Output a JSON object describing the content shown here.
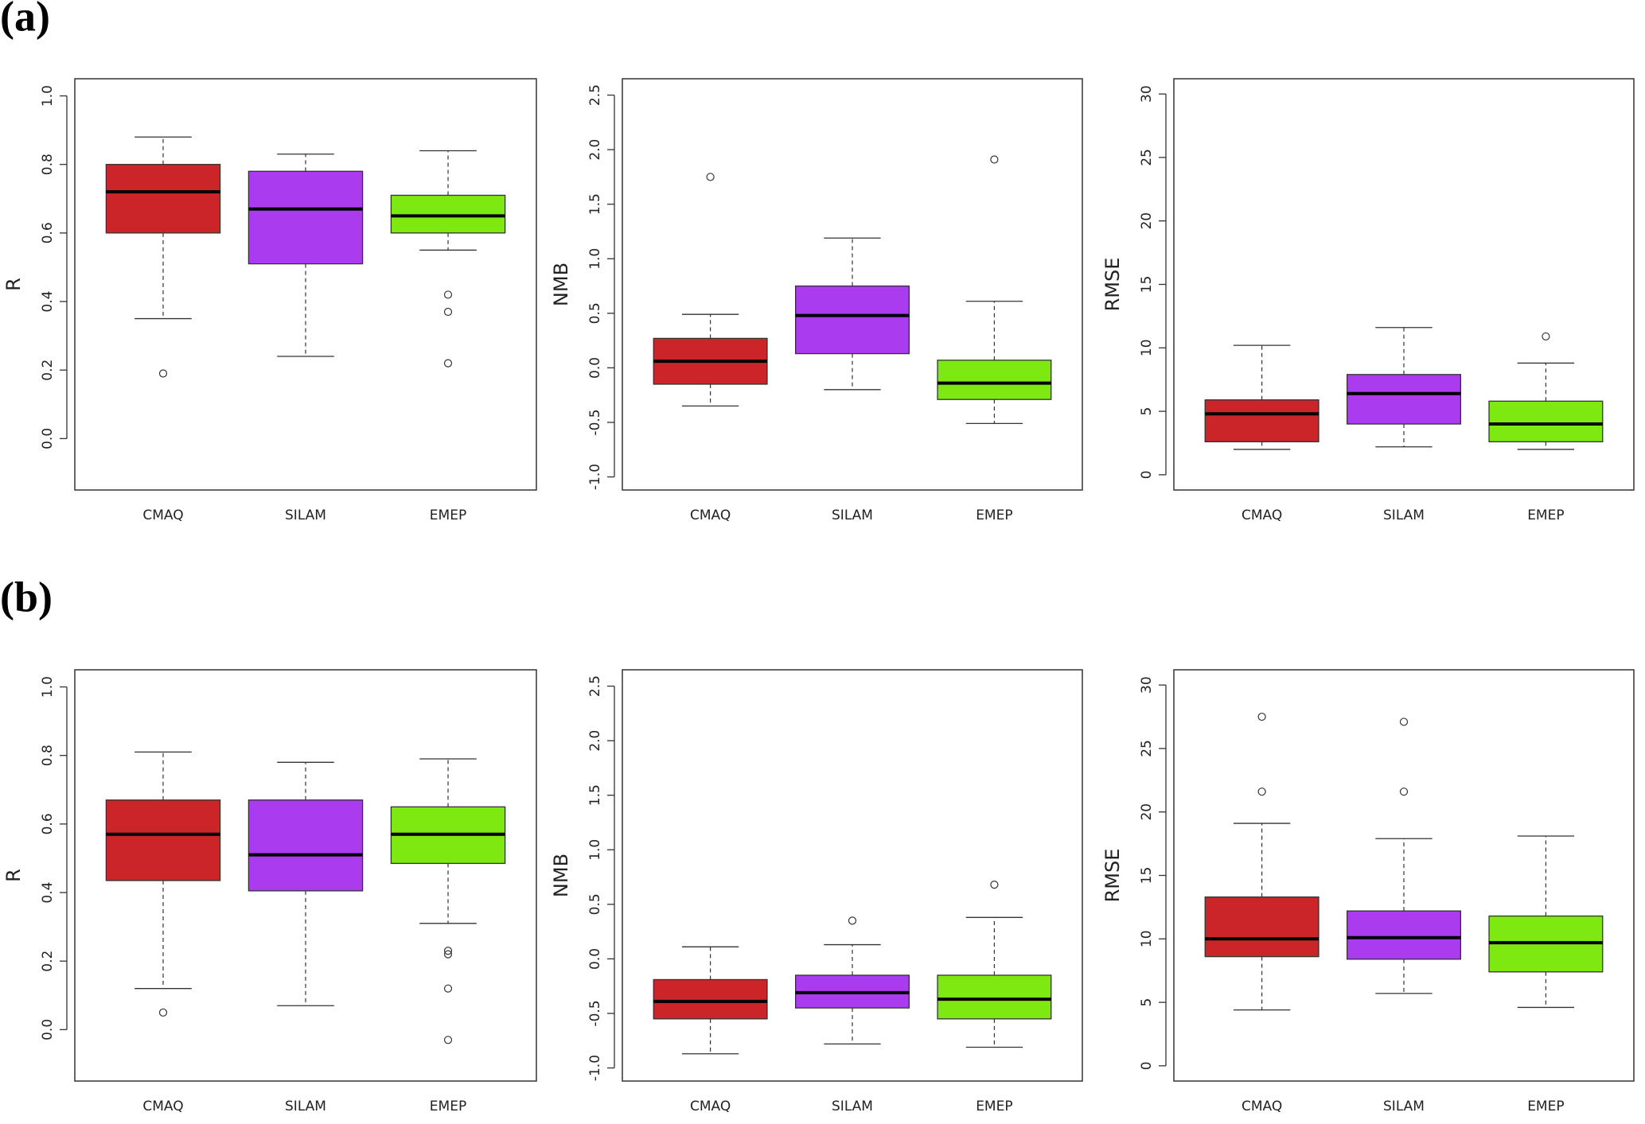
{
  "panel_labels": [
    "(a)",
    "(b)"
  ],
  "chart_data": [
    {
      "type": "box",
      "ylabel": "R",
      "categories": [
        "CMAQ",
        "SILAM",
        "EMEP"
      ],
      "colors": [
        "#cc2529",
        "#aa3bef",
        "#7ee811"
      ],
      "ylim": [
        -0.15,
        1.05
      ],
      "yticks": [
        {
          "value": 0,
          "label": "0.0"
        },
        0.2,
        0.4,
        0.6,
        0.8,
        {
          "value": 1,
          "label": "1.0"
        }
      ],
      "boxes": [
        {
          "whisker_low": 0.35,
          "q1": 0.6,
          "median": 0.72,
          "q3": 0.8,
          "whisker_high": 0.88,
          "outliers": [
            0.19
          ]
        },
        {
          "whisker_low": 0.24,
          "q1": 0.51,
          "median": 0.67,
          "q3": 0.78,
          "whisker_high": 0.83,
          "outliers": []
        },
        {
          "whisker_low": 0.55,
          "q1": 0.6,
          "median": 0.65,
          "q3": 0.71,
          "whisker_high": 0.84,
          "outliers": [
            0.42,
            0.37,
            0.22
          ]
        }
      ]
    },
    {
      "type": "box",
      "ylabel": "NMB",
      "categories": [
        "CMAQ",
        "SILAM",
        "EMEP"
      ],
      "colors": [
        "#cc2529",
        "#aa3bef",
        "#7ee811"
      ],
      "ylim": [
        -1.12,
        2.65
      ],
      "yticks": [
        {
          "value": -1,
          "label": "-1.0"
        },
        -0.5,
        {
          "value": 0,
          "label": "0.0"
        },
        0.5,
        {
          "value": 1,
          "label": "1.0"
        },
        1.5,
        {
          "value": 2,
          "label": "2.0"
        },
        2.5
      ],
      "boxes": [
        {
          "whisker_low": -0.35,
          "q1": -0.15,
          "median": 0.06,
          "q3": 0.27,
          "whisker_high": 0.49,
          "outliers": [
            1.75
          ]
        },
        {
          "whisker_low": -0.2,
          "q1": 0.13,
          "median": 0.48,
          "q3": 0.75,
          "whisker_high": 1.19,
          "outliers": []
        },
        {
          "whisker_low": -0.51,
          "q1": -0.29,
          "median": -0.14,
          "q3": 0.07,
          "whisker_high": 0.61,
          "outliers": [
            1.91
          ]
        }
      ]
    },
    {
      "type": "box",
      "ylabel": "RMSE",
      "categories": [
        "CMAQ",
        "SILAM",
        "EMEP"
      ],
      "colors": [
        "#cc2529",
        "#aa3bef",
        "#7ee811"
      ],
      "ylim": [
        -1.2,
        31.2
      ],
      "yticks": [
        0,
        5,
        10,
        15,
        20,
        25,
        30
      ],
      "boxes": [
        {
          "whisker_low": 2.0,
          "q1": 2.6,
          "median": 4.8,
          "q3": 5.9,
          "whisker_high": 10.2,
          "outliers": []
        },
        {
          "whisker_low": 2.2,
          "q1": 4.0,
          "median": 6.4,
          "q3": 7.9,
          "whisker_high": 11.6,
          "outliers": []
        },
        {
          "whisker_low": 2.0,
          "q1": 2.6,
          "median": 4.0,
          "q3": 5.8,
          "whisker_high": 8.8,
          "outliers": [
            10.9
          ]
        }
      ]
    },
    {
      "type": "box",
      "ylabel": "R",
      "categories": [
        "CMAQ",
        "SILAM",
        "EMEP"
      ],
      "colors": [
        "#cc2529",
        "#aa3bef",
        "#7ee811"
      ],
      "ylim": [
        -0.15,
        1.05
      ],
      "yticks": [
        {
          "value": 0,
          "label": "0.0"
        },
        0.2,
        0.4,
        0.6,
        0.8,
        {
          "value": 1,
          "label": "1.0"
        }
      ],
      "boxes": [
        {
          "whisker_low": 0.12,
          "q1": 0.435,
          "median": 0.57,
          "q3": 0.67,
          "whisker_high": 0.81,
          "outliers": [
            0.05
          ]
        },
        {
          "whisker_low": 0.07,
          "q1": 0.405,
          "median": 0.51,
          "q3": 0.67,
          "whisker_high": 0.78,
          "outliers": []
        },
        {
          "whisker_low": 0.31,
          "q1": 0.485,
          "median": 0.57,
          "q3": 0.65,
          "whisker_high": 0.79,
          "outliers": [
            0.23,
            0.22,
            0.12,
            -0.03
          ]
        }
      ]
    },
    {
      "type": "box",
      "ylabel": "NMB",
      "categories": [
        "CMAQ",
        "SILAM",
        "EMEP"
      ],
      "colors": [
        "#cc2529",
        "#aa3bef",
        "#7ee811"
      ],
      "ylim": [
        -1.12,
        2.65
      ],
      "yticks": [
        {
          "value": -1,
          "label": "-1.0"
        },
        -0.5,
        {
          "value": 0,
          "label": "0.0"
        },
        0.5,
        {
          "value": 1,
          "label": "1.0"
        },
        1.5,
        {
          "value": 2,
          "label": "2.0"
        },
        2.5
      ],
      "boxes": [
        {
          "whisker_low": -0.87,
          "q1": -0.55,
          "median": -0.39,
          "q3": -0.19,
          "whisker_high": 0.11,
          "outliers": []
        },
        {
          "whisker_low": -0.78,
          "q1": -0.45,
          "median": -0.31,
          "q3": -0.15,
          "whisker_high": 0.13,
          "outliers": [
            0.35
          ]
        },
        {
          "whisker_low": -0.81,
          "q1": -0.55,
          "median": -0.37,
          "q3": -0.15,
          "whisker_high": 0.38,
          "outliers": [
            0.68
          ]
        }
      ]
    },
    {
      "type": "box",
      "ylabel": "RMSE",
      "categories": [
        "CMAQ",
        "SILAM",
        "EMEP"
      ],
      "colors": [
        "#cc2529",
        "#aa3bef",
        "#7ee811"
      ],
      "ylim": [
        -1.2,
        31.2
      ],
      "yticks": [
        0,
        5,
        10,
        15,
        20,
        25,
        30
      ],
      "boxes": [
        {
          "whisker_low": 4.4,
          "q1": 8.6,
          "median": 10.0,
          "q3": 13.3,
          "whisker_high": 19.1,
          "outliers": [
            21.6,
            27.5
          ]
        },
        {
          "whisker_low": 5.7,
          "q1": 8.4,
          "median": 10.1,
          "q3": 12.2,
          "whisker_high": 17.9,
          "outliers": [
            21.6,
            27.1
          ]
        },
        {
          "whisker_low": 4.6,
          "q1": 7.4,
          "median": 9.7,
          "q3": 11.8,
          "whisker_high": 18.1,
          "outliers": []
        }
      ]
    }
  ]
}
